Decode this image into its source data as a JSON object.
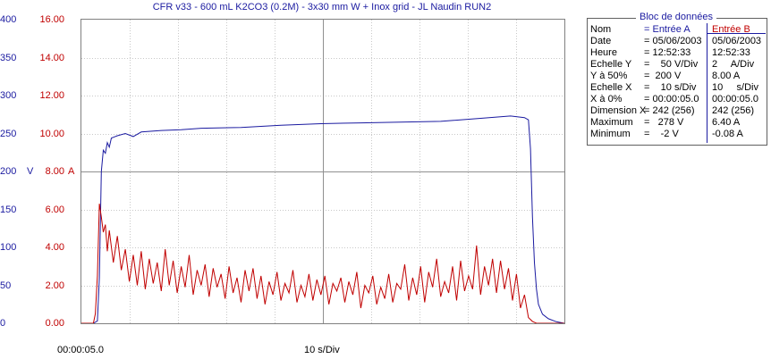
{
  "chart_data": {
    "type": "line",
    "title": "CFR v33 - 600 mL K2CO3 (0.2M) - 3x30 mm W + Inox grid - JL Naudin RUN2",
    "x_start_label": "00:00:05.0",
    "x_div_label": "10 s/Div",
    "xlim": [
      0,
      242
    ],
    "grid": true,
    "axes": {
      "A": {
        "ticks": [
          "400",
          "350",
          "300",
          "250",
          "200",
          "150",
          "100",
          "50",
          "0"
        ],
        "unit": "V",
        "ylim": [
          0,
          400
        ],
        "color": "#1a1aa0"
      },
      "B": {
        "ticks": [
          "16.00",
          "14.00",
          "12.00",
          "10.00",
          "8.00",
          "6.00",
          "4.00",
          "2.00",
          "0.00"
        ],
        "unit": "A",
        "ylim": [
          0,
          16
        ],
        "color": "#c00000"
      }
    },
    "series": [
      {
        "name": "Entrée A",
        "axis": "A",
        "color": "#1a1aa0",
        "points": [
          [
            0,
            0
          ],
          [
            6,
            0
          ],
          [
            8,
            3
          ],
          [
            9,
            60
          ],
          [
            10,
            200
          ],
          [
            11,
            228
          ],
          [
            12,
            224
          ],
          [
            13,
            238
          ],
          [
            14,
            232
          ],
          [
            15,
            244
          ],
          [
            18,
            247
          ],
          [
            22,
            250
          ],
          [
            26,
            246
          ],
          [
            30,
            252
          ],
          [
            40,
            254
          ],
          [
            50,
            255
          ],
          [
            60,
            257
          ],
          [
            80,
            258
          ],
          [
            100,
            261
          ],
          [
            120,
            263
          ],
          [
            140,
            264
          ],
          [
            160,
            265
          ],
          [
            180,
            266
          ],
          [
            200,
            270
          ],
          [
            215,
            273
          ],
          [
            222,
            271
          ],
          [
            224,
            268
          ],
          [
            225,
            230
          ],
          [
            226,
            140
          ],
          [
            227,
            80
          ],
          [
            228,
            45
          ],
          [
            229,
            25
          ],
          [
            231,
            12
          ],
          [
            234,
            6
          ],
          [
            238,
            2
          ],
          [
            242,
            0
          ]
        ]
      },
      {
        "name": "Entrée B",
        "axis": "B",
        "color": "#c00000",
        "points": [
          [
            0,
            0
          ],
          [
            6,
            0
          ],
          [
            7,
            0.5
          ],
          [
            8,
            2.5
          ],
          [
            9,
            6.3
          ],
          [
            10,
            5.6
          ],
          [
            11,
            4.8
          ],
          [
            12,
            5.2
          ],
          [
            13,
            3.8
          ],
          [
            14,
            4.9
          ],
          [
            16,
            3.2
          ],
          [
            18,
            4.6
          ],
          [
            20,
            2.8
          ],
          [
            22,
            3.9
          ],
          [
            24,
            2.2
          ],
          [
            26,
            3.6
          ],
          [
            28,
            2.0
          ],
          [
            30,
            3.8
          ],
          [
            32,
            1.8
          ],
          [
            34,
            3.4
          ],
          [
            36,
            2.1
          ],
          [
            38,
            3.2
          ],
          [
            40,
            1.7
          ],
          [
            42,
            3.9
          ],
          [
            44,
            2.0
          ],
          [
            46,
            3.3
          ],
          [
            48,
            1.6
          ],
          [
            50,
            3.0
          ],
          [
            52,
            1.9
          ],
          [
            54,
            3.6
          ],
          [
            56,
            1.5
          ],
          [
            58,
            2.8
          ],
          [
            60,
            2.0
          ],
          [
            62,
            3.1
          ],
          [
            64,
            1.4
          ],
          [
            66,
            2.9
          ],
          [
            68,
            1.9
          ],
          [
            70,
            2.6
          ],
          [
            72,
            1.3
          ],
          [
            74,
            3.0
          ],
          [
            76,
            1.6
          ],
          [
            78,
            2.4
          ],
          [
            80,
            1.1
          ],
          [
            82,
            2.8
          ],
          [
            84,
            1.7
          ],
          [
            86,
            2.9
          ],
          [
            88,
            1.3
          ],
          [
            90,
            2.5
          ],
          [
            92,
            1.0
          ],
          [
            94,
            2.2
          ],
          [
            96,
            1.5
          ],
          [
            98,
            2.7
          ],
          [
            100,
            1.2
          ],
          [
            102,
            2.1
          ],
          [
            104,
            1.6
          ],
          [
            106,
            2.8
          ],
          [
            108,
            1.1
          ],
          [
            110,
            2.0
          ],
          [
            112,
            1.4
          ],
          [
            114,
            2.6
          ],
          [
            116,
            1.2
          ],
          [
            118,
            2.3
          ],
          [
            120,
            1.5
          ],
          [
            122,
            2.5
          ],
          [
            124,
            1.0
          ],
          [
            126,
            2.1
          ],
          [
            128,
            1.7
          ],
          [
            130,
            2.4
          ],
          [
            132,
            1.1
          ],
          [
            134,
            2.2
          ],
          [
            136,
            1.5
          ],
          [
            138,
            2.7
          ],
          [
            140,
            0.8
          ],
          [
            142,
            2.0
          ],
          [
            144,
            1.6
          ],
          [
            146,
            2.5
          ],
          [
            148,
            1.0
          ],
          [
            150,
            1.9
          ],
          [
            152,
            1.3
          ],
          [
            154,
            2.6
          ],
          [
            156,
            1.1
          ],
          [
            158,
            2.1
          ],
          [
            160,
            1.8
          ],
          [
            162,
            3.1
          ],
          [
            164,
            1.2
          ],
          [
            166,
            2.4
          ],
          [
            168,
            1.5
          ],
          [
            170,
            3.0
          ],
          [
            172,
            1.1
          ],
          [
            174,
            2.7
          ],
          [
            176,
            1.9
          ],
          [
            178,
            3.4
          ],
          [
            180,
            1.4
          ],
          [
            182,
            2.2
          ],
          [
            184,
            1.6
          ],
          [
            186,
            3.0
          ],
          [
            188,
            1.2
          ],
          [
            190,
            3.3
          ],
          [
            192,
            1.7
          ],
          [
            194,
            2.5
          ],
          [
            196,
            1.8
          ],
          [
            198,
            4.1
          ],
          [
            200,
            1.5
          ],
          [
            202,
            3.0
          ],
          [
            204,
            2.0
          ],
          [
            206,
            3.4
          ],
          [
            208,
            1.6
          ],
          [
            210,
            3.3
          ],
          [
            212,
            1.8
          ],
          [
            214,
            2.9
          ],
          [
            216,
            1.2
          ],
          [
            218,
            2.6
          ],
          [
            220,
            0.8
          ],
          [
            222,
            1.5
          ],
          [
            224,
            0.3
          ],
          [
            226,
            0.1
          ],
          [
            228,
            0
          ],
          [
            242,
            0
          ]
        ]
      }
    ]
  },
  "databox": {
    "title": "Bloc de données",
    "header": {
      "label": "Nom",
      "a": "= Entrée A",
      "b": "Entrée B"
    },
    "rows": [
      {
        "label": "Date",
        "a": "= 05/06/2003",
        "b": "05/06/2003"
      },
      {
        "label": "Heure",
        "a": "= 12:52:33",
        "b": "12:52:33"
      },
      {
        "label": "Echelle Y",
        "a": "=    50 V/Div",
        "b": "2     A/Div"
      },
      {
        "label": "Y à 50%",
        "a": "=  200 V",
        "b": "8.00 A"
      },
      {
        "label": "Echelle X",
        "a": "=    10 s/Div",
        "b": "10     s/Div"
      },
      {
        "label": "X à 0%",
        "a": "= 00:00:05.0",
        "b": "00:00:05.0"
      },
      {
        "label": "Dimension X",
        "a": "= 242 (256)",
        "b": "242 (256)"
      },
      {
        "label": "Maximum",
        "a": "=   278 V",
        "b": "6.40 A"
      },
      {
        "label": "Minimum",
        "a": "=    -2 V",
        "b": "-0.08 A"
      }
    ]
  }
}
